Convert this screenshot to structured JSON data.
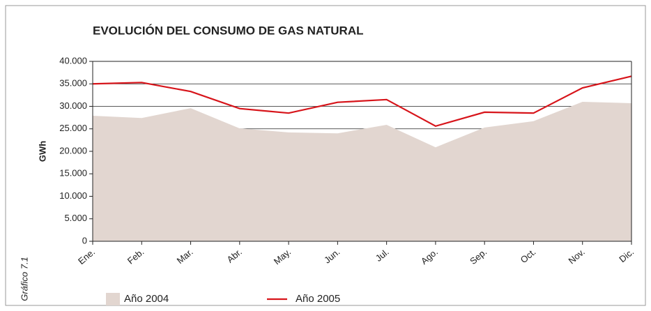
{
  "chart_data": {
    "type": "line",
    "title": "EVOLUCIÓN DEL CONSUMO DE GAS NATURAL",
    "y_label": "GWh",
    "side_label": "Gráfico 7.1",
    "categories": [
      "Ene.",
      "Feb.",
      "Mar.",
      "Abr.",
      "May.",
      "Jun.",
      "Jul.",
      "Ago.",
      "Sep.",
      "Oct.",
      "Nov.",
      "Dic."
    ],
    "series": [
      {
        "name": "Año 2004",
        "type": "area",
        "color": "#e2d6d0",
        "values": [
          27900,
          27400,
          29600,
          25100,
          24200,
          24000,
          25900,
          20900,
          25300,
          26700,
          31000,
          30700
        ]
      },
      {
        "name": "Año 2005",
        "type": "line",
        "color": "#d7141a",
        "values": [
          35000,
          35300,
          33300,
          29500,
          28500,
          30900,
          31500,
          25600,
          28700,
          28500,
          34100,
          36700
        ]
      }
    ],
    "ylim": [
      0,
      40000
    ],
    "yticks": [
      0,
      {
        "value": 5000,
        "label": "5.000"
      },
      {
        "value": 10000,
        "label": "10.000"
      },
      {
        "value": 15000,
        "label": "15.000"
      },
      {
        "value": 20000,
        "label": "20.000"
      },
      {
        "value": 25000,
        "label": "25.000"
      },
      {
        "value": 30000,
        "label": "30.000"
      },
      {
        "value": 35000,
        "label": "35.000"
      },
      {
        "value": 40000,
        "label": "40.000"
      }
    ],
    "grid": true
  }
}
